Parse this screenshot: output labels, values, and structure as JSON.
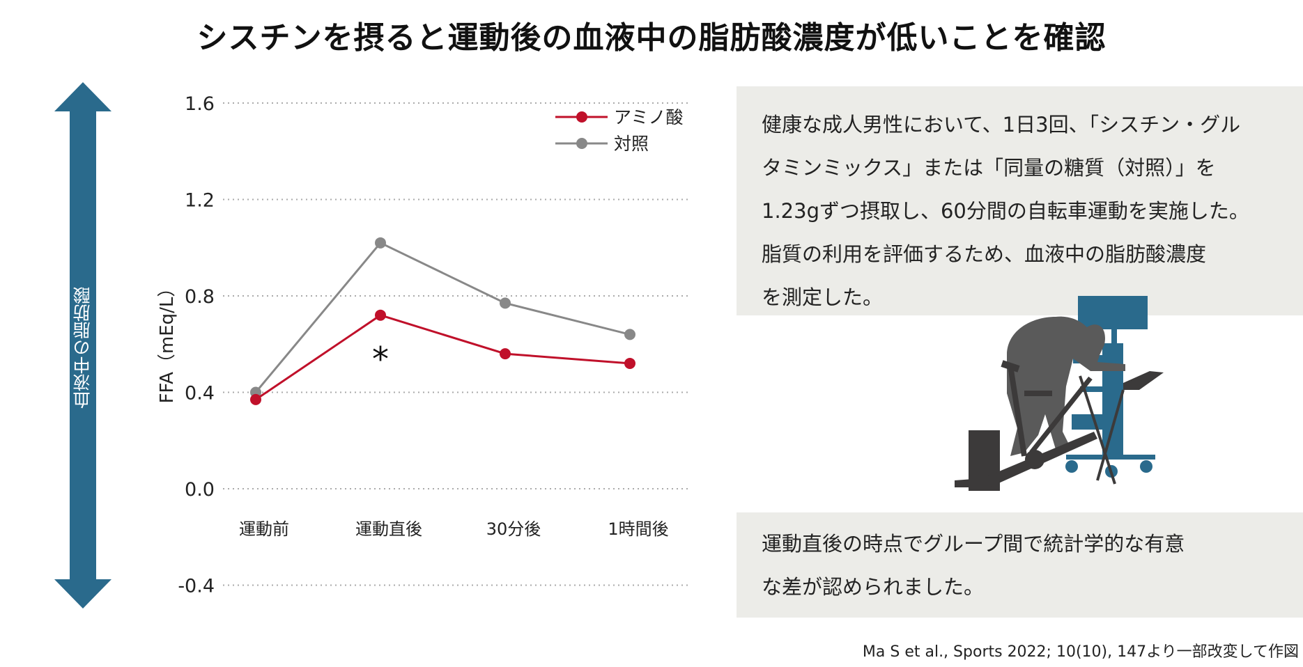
{
  "title": "シスチンを摂ると運動後の血液中の脂肪酸濃度が低いことを確認",
  "side_label": "血液中の脂肪酸",
  "colors": {
    "amino": "#c0102a",
    "control": "#888888",
    "arrow": "#2a6a8c",
    "box_bg": "#ecece8"
  },
  "chart_data": {
    "type": "line",
    "ylabel": "FFA（mEq/L）",
    "xlabel": "",
    "categories": [
      "運動前",
      "運動直後",
      "30分後",
      "1時間後"
    ],
    "ylim": [
      -0.4,
      1.6
    ],
    "yticks": [
      "1.6",
      "1.2",
      "0.8",
      "0.4",
      "0.0",
      "-0.4"
    ],
    "ytick_values": [
      1.6,
      1.2,
      0.8,
      0.4,
      0.0,
      -0.4
    ],
    "grid": true,
    "legend_position": "top-right",
    "series": [
      {
        "name": "アミノ酸",
        "color": "#c0102a",
        "values": [
          0.37,
          0.72,
          0.56,
          0.52
        ]
      },
      {
        "name": "対照",
        "color": "#888888",
        "values": [
          0.4,
          1.02,
          0.77,
          0.64
        ]
      }
    ],
    "annotations": [
      {
        "text": "*",
        "category": "運動直後"
      }
    ]
  },
  "box1_lines": [
    "健康な成人男性において、1日3回、「シスチン・グル",
    "タミンミックス」または「同量の糖質（対照）」を",
    "1.23gずつ摂取し、60分間の自転車運動を実施した。",
    "脂質の利用を評価するため、血液中の脂肪酸濃度",
    "を測定した。"
  ],
  "box2_lines": [
    "運動直後の時点でグループ間で統計学的な有意",
    "な差が認められました。"
  ],
  "citation": "Ma S et al., Sports 2022; 10(10), 147より一部改変して作図",
  "illustration": "cyclist-on-ergometer-with-monitor-cart"
}
